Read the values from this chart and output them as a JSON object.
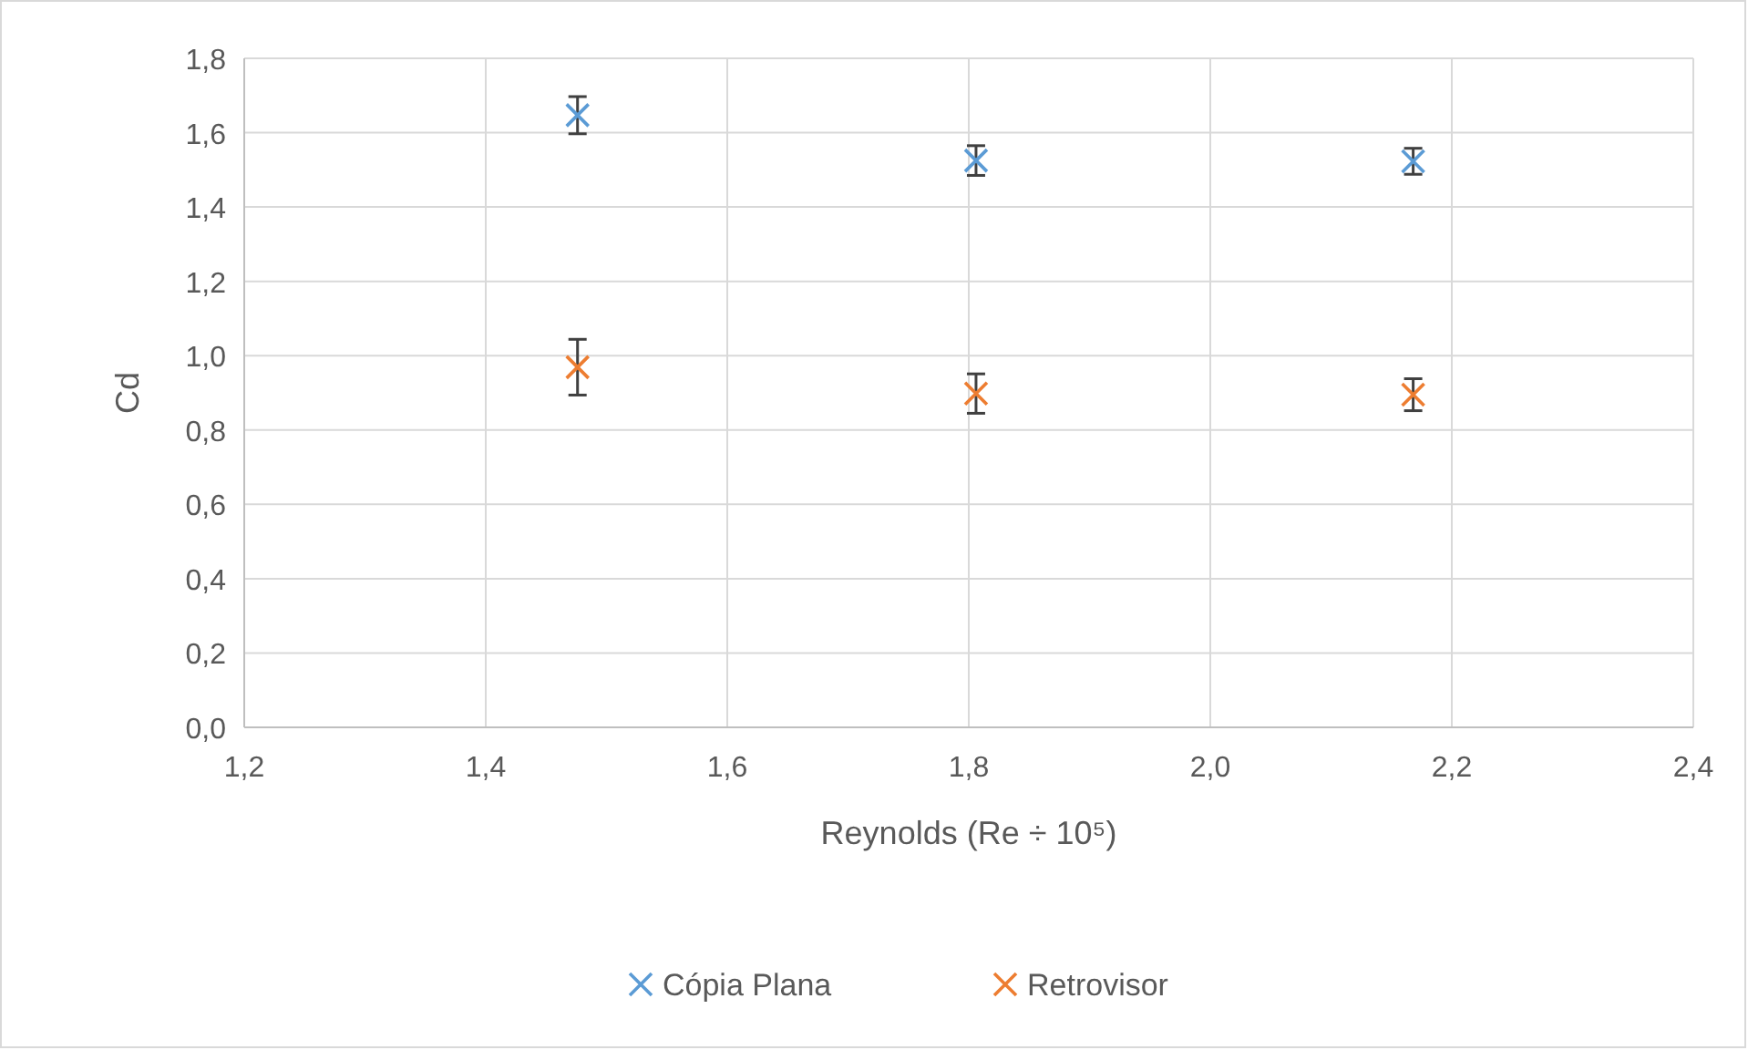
{
  "chart_data": {
    "type": "scatter",
    "xlabel": "Reynolds (Re ÷ 10⁵)",
    "ylabel": "Cd",
    "x": [
      1.476,
      1.806,
      2.168
    ],
    "series": [
      {
        "name": "Cópia Plana",
        "color": "#5b9bd5",
        "values": [
          1.647,
          1.525,
          1.523
        ],
        "errors": [
          0.05,
          0.04,
          0.035
        ]
      },
      {
        "name": "Retrovisor",
        "color": "#ed7d31",
        "values": [
          0.969,
          0.898,
          0.895
        ],
        "errors": [
          0.075,
          0.053,
          0.043
        ]
      }
    ],
    "xlim": [
      1.2,
      2.4
    ],
    "xticks": [
      {
        "value": 1.2,
        "label": "1,2"
      },
      {
        "value": 1.4,
        "label": "1,4"
      },
      {
        "value": 1.6,
        "label": "1,6"
      },
      {
        "value": 1.8,
        "label": "1,8"
      },
      {
        "value": 2.0,
        "label": "2,0"
      },
      {
        "value": 2.2,
        "label": "2,2"
      },
      {
        "value": 2.4,
        "label": "2,4"
      }
    ],
    "ylim": [
      0,
      1.8
    ],
    "yticks": [
      {
        "value": 0,
        "label": "0,0"
      },
      {
        "value": 0.2,
        "label": "0,2"
      },
      {
        "value": 0.4,
        "label": "0,4"
      },
      {
        "value": 0.6,
        "label": "0,6"
      },
      {
        "value": 0.8,
        "label": "0,8"
      },
      {
        "value": 1.0,
        "label": "1,0"
      },
      {
        "value": 1.2,
        "label": "1,2"
      },
      {
        "value": 1.4,
        "label": "1,4"
      },
      {
        "value": 1.6,
        "label": "1,6"
      },
      {
        "value": 1.8,
        "label": "1,8"
      }
    ],
    "grid": true,
    "legend": "bottom",
    "marker": "cross"
  }
}
